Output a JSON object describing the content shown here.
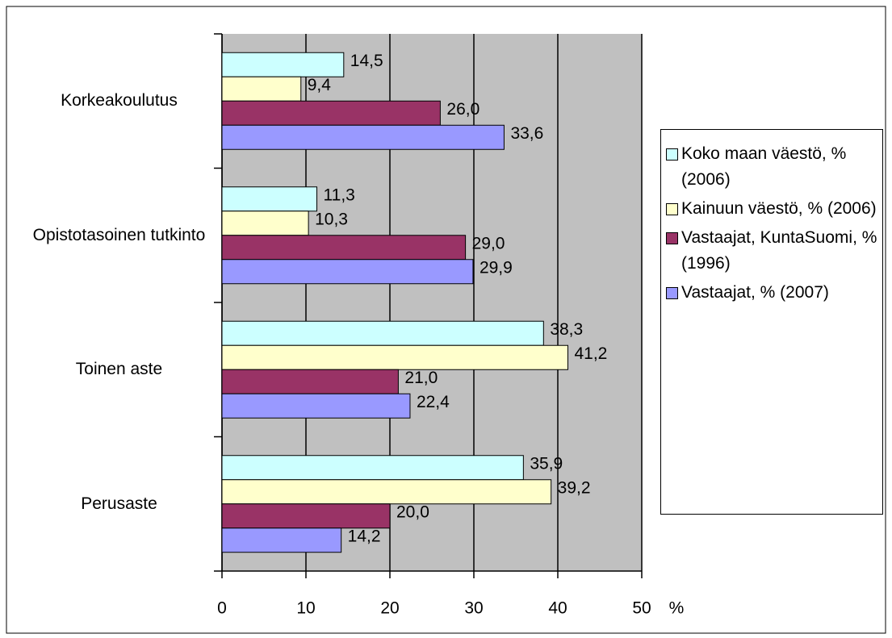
{
  "chart_data": {
    "type": "barh",
    "categories": [
      "Korkeakoulutus",
      "Opistotasoinen tutkinto",
      "Toinen aste",
      "Perusaste"
    ],
    "series": [
      {
        "name": "Koko maan väestö, % (2006)",
        "color": "#ccffff",
        "values": [
          14.5,
          11.3,
          38.3,
          35.9
        ],
        "value_labels": [
          "14,5",
          "11,3",
          "38,3",
          "35,9"
        ]
      },
      {
        "name": "Kainuun väestö, % (2006)",
        "color": "#ffffcc",
        "values": [
          9.4,
          10.3,
          41.2,
          39.2
        ],
        "value_labels": [
          "9,4",
          "10,3",
          "41,2",
          "39,2"
        ]
      },
      {
        "name": "Vastaajat, KuntaSuomi, % (1996)",
        "color": "#993366",
        "values": [
          26.0,
          29.0,
          21.0,
          20.0
        ],
        "value_labels": [
          "26,0",
          "29,0",
          "21,0",
          "20,0"
        ]
      },
      {
        "name": "Vastaajat, % (2007)",
        "color": "#9999ff",
        "values": [
          33.6,
          29.9,
          22.4,
          14.2
        ],
        "value_labels": [
          "33,6",
          "29,9",
          "22,4",
          "14,2"
        ]
      }
    ],
    "x_label": "%",
    "xlim": [
      0,
      50
    ],
    "xticks": [
      0,
      10,
      20,
      30,
      40,
      50
    ],
    "grid": true,
    "plot_background": "#c0c0c0",
    "legend": "right"
  }
}
